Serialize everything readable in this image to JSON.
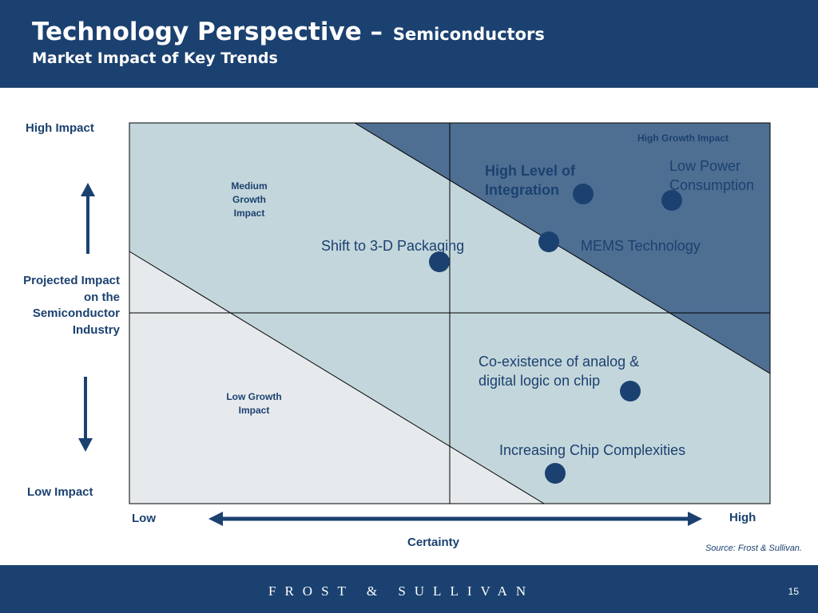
{
  "header": {
    "title": "Technology Perspective –",
    "subtitle": "Semiconductors",
    "line2": "Market Impact of Key Trends"
  },
  "y_axis": {
    "high": "High Impact",
    "low": "Low Impact",
    "label": "Projected Impact on the Semiconductor Industry"
  },
  "x_axis": {
    "low": "Low",
    "high": "High",
    "label": "Certainty"
  },
  "regions": {
    "high": "High Growth Impact",
    "medium": "Medium Growth Impact",
    "low": "Low Growth Impact"
  },
  "items": [
    {
      "id": "high-level-integration",
      "label": "High Level of Integration",
      "emphasis": true
    },
    {
      "id": "low-power-consumption",
      "label": "Low Power Consumption",
      "emphasis": false
    },
    {
      "id": "shift-3d-packaging",
      "label": "Shift to 3-D Packaging",
      "emphasis": false
    },
    {
      "id": "mems-technology",
      "label": "MEMS Technology",
      "emphasis": false
    },
    {
      "id": "analog-digital",
      "label": "Co-existence of analog & digital logic on chip",
      "emphasis": false
    },
    {
      "id": "chip-complexities",
      "label": "Increasing Chip Complexities",
      "emphasis": false
    }
  ],
  "source": "Source: Frost & Sullivan.",
  "footer": {
    "brand": "FROST & SULLIVAN",
    "page_number": "15"
  },
  "colors": {
    "brand_navy": "#1b4170",
    "high_region": "#4e6f92",
    "medium_region": "#c3d6db",
    "low_region": "#e6eaed"
  }
}
